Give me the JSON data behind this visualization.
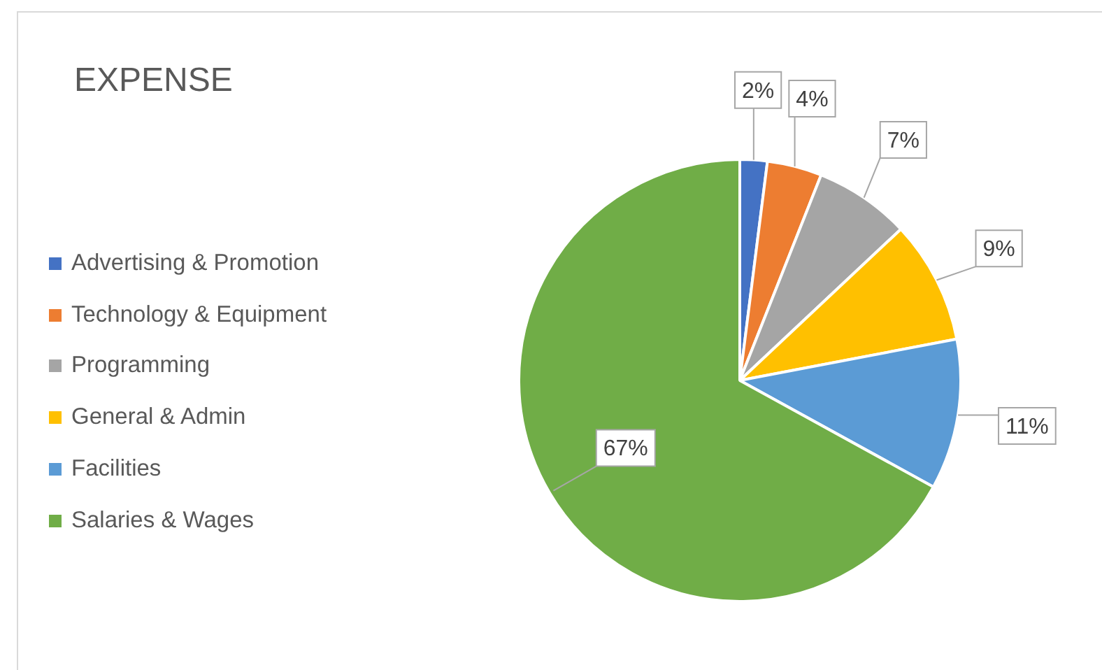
{
  "chart_data": {
    "type": "pie",
    "title": "EXPENSE",
    "categories": [
      "Advertising & Promotion",
      "Technology & Equipment",
      "Programming",
      "General & Admin",
      "Facilities",
      "Salaries & Wages"
    ],
    "values": [
      2,
      4,
      7,
      9,
      11,
      67
    ],
    "colors": [
      "#4472c4",
      "#ed7d31",
      "#a5a5a5",
      "#ffc000",
      "#5b9bd5",
      "#70ad47"
    ],
    "value_labels": [
      "2%",
      "4%",
      "7%",
      "9%",
      "11%",
      "67%"
    ],
    "legend": "left"
  }
}
